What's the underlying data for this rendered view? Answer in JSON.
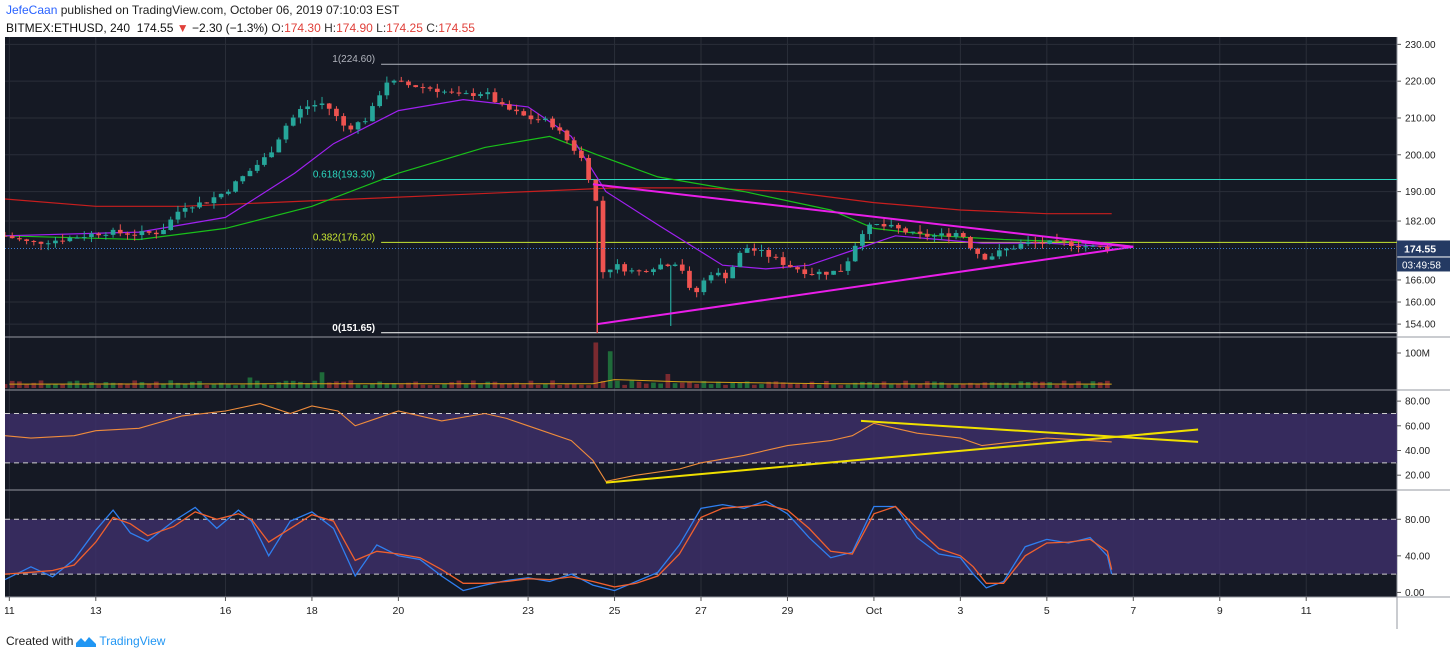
{
  "header": {
    "author": "JefeCaan",
    "published_text": "published on TradingView.com, October 06, 2019 07:10:03 EST",
    "symbol": "BITMEX:ETHUSD, 240",
    "last": "174.55",
    "change_arrow": "▼",
    "change": "−2.30 (−1.3%)",
    "o_label": "O:",
    "o": "174.30",
    "h_label": "H:",
    "h": "174.90",
    "l_label": "L:",
    "l": "174.25",
    "c_label": "C:",
    "c": "174.55"
  },
  "footer": {
    "created_with": "Created with",
    "brand": "TradingView"
  },
  "colors": {
    "background": "#151924",
    "grid": "#2a2e39",
    "up": "#26a69a",
    "down": "#ef5350",
    "wedge": "#e91ee9",
    "fib": "#c8e632",
    "ma_green": "#19c019",
    "ma_purple": "#a020f0",
    "ma_red": "#c81e1e",
    "rsi_line": "#ef8c3c",
    "rsi_trend": "#f0e000",
    "stoch_k": "#2f7ff0",
    "stoch_d": "#f0602e",
    "band": "#3e2f6b"
  },
  "chart_data": {
    "type": "candlestick",
    "timeframe": "240",
    "date_ticks": [
      "11",
      "13",
      "16",
      "18",
      "20",
      "23",
      "25",
      "27",
      "29",
      "Oct",
      "3",
      "5",
      "7",
      "9",
      "11"
    ],
    "date_tick_positions": [
      11,
      13,
      16,
      18,
      20,
      23,
      25,
      27,
      29,
      31,
      33,
      35,
      37,
      39,
      41
    ],
    "x_range": [
      10.9,
      43.1
    ],
    "price_axis": {
      "ticks": [
        230,
        220,
        210,
        200,
        190,
        182,
        166,
        160,
        154
      ],
      "ylim": [
        150.5,
        232
      ]
    },
    "last_price_label": "174.55",
    "countdown_label": "03:49:58",
    "fib_levels": [
      {
        "label": "1(224.60)",
        "price": 224.6
      },
      {
        "label": "0.618(193.30)",
        "price": 193.3
      },
      {
        "label": "0.382(176.20)",
        "price": 176.2
      },
      {
        "label": "0(151.65)",
        "price": 151.65
      }
    ],
    "price_anchors": [
      [
        10.9,
        178
      ],
      [
        11.5,
        176
      ],
      [
        12.2,
        177
      ],
      [
        13.2,
        179
      ],
      [
        14,
        178.5
      ],
      [
        14.5,
        179
      ],
      [
        15,
        186
      ],
      [
        15.5,
        187
      ],
      [
        16,
        190
      ],
      [
        16.5,
        195
      ],
      [
        17,
        200
      ],
      [
        17.4,
        208
      ],
      [
        17.8,
        213
      ],
      [
        18.3,
        214
      ],
      [
        18.8,
        207
      ],
      [
        19.3,
        210
      ],
      [
        19.7,
        220
      ],
      [
        20.2,
        219
      ],
      [
        20.8,
        218
      ],
      [
        21.4,
        216
      ],
      [
        22,
        217
      ],
      [
        22.4,
        213
      ],
      [
        23,
        210
      ],
      [
        23.5,
        209
      ],
      [
        23.9,
        204
      ],
      [
        24.3,
        198
      ],
      [
        24.6,
        186
      ],
      [
        24.7,
        168
      ],
      [
        25,
        170
      ],
      [
        25.5,
        168
      ],
      [
        26,
        170
      ],
      [
        26.5,
        171
      ],
      [
        26.8,
        161
      ],
      [
        27.2,
        168
      ],
      [
        27.6,
        167
      ],
      [
        28,
        175
      ],
      [
        28.5,
        173
      ],
      [
        29,
        170
      ],
      [
        29.5,
        168
      ],
      [
        30,
        168
      ],
      [
        30.3,
        169
      ],
      [
        30.7,
        179
      ],
      [
        31,
        181
      ],
      [
        31.5,
        180
      ],
      [
        32,
        178
      ],
      [
        32.5,
        178
      ],
      [
        33,
        179
      ],
      [
        33.3,
        174
      ],
      [
        33.6,
        172
      ],
      [
        34,
        174
      ],
      [
        34.5,
        176
      ],
      [
        35,
        176
      ],
      [
        35.5,
        176
      ],
      [
        36,
        175
      ],
      [
        36.5,
        174.55
      ]
    ],
    "ma_green": [
      [
        10.9,
        178
      ],
      [
        14,
        177
      ],
      [
        16,
        180
      ],
      [
        18,
        186
      ],
      [
        20,
        195
      ],
      [
        22,
        202
      ],
      [
        23.5,
        205
      ],
      [
        24.6,
        200
      ],
      [
        26,
        194
      ],
      [
        28,
        190
      ],
      [
        30,
        185
      ],
      [
        31,
        180
      ],
      [
        32.5,
        178
      ],
      [
        34,
        177
      ],
      [
        36.5,
        176
      ]
    ],
    "ma_purple": [
      [
        10.9,
        178
      ],
      [
        14,
        179
      ],
      [
        16,
        183
      ],
      [
        17.6,
        195
      ],
      [
        18.5,
        203
      ],
      [
        20,
        212
      ],
      [
        21.5,
        215
      ],
      [
        23,
        213
      ],
      [
        24,
        205
      ],
      [
        24.8,
        190
      ],
      [
        26,
        181
      ],
      [
        27.5,
        170
      ],
      [
        28.5,
        169
      ],
      [
        29.5,
        170
      ],
      [
        30.5,
        174
      ],
      [
        31.5,
        178
      ],
      [
        32.5,
        177
      ],
      [
        33.5,
        176
      ],
      [
        35,
        176
      ],
      [
        36.5,
        175
      ]
    ],
    "ma_red": [
      [
        10.9,
        188
      ],
      [
        13,
        186
      ],
      [
        15,
        186
      ],
      [
        17,
        187
      ],
      [
        19,
        188
      ],
      [
        21,
        189
      ],
      [
        23,
        190
      ],
      [
        25,
        191
      ],
      [
        27,
        191
      ],
      [
        29,
        190
      ],
      [
        31,
        187
      ],
      [
        33,
        185
      ],
      [
        35,
        184
      ],
      [
        36.5,
        184
      ]
    ],
    "wedge_upper": [
      [
        24.5,
        192
      ],
      [
        37,
        175
      ]
    ],
    "wedge_lower": [
      [
        24.6,
        154
      ],
      [
        37,
        175
      ]
    ],
    "volume_axis": {
      "label": "100M",
      "level": 100000000,
      "max": 140000000
    },
    "volume_spikes": [
      [
        24.6,
        130000000
      ],
      [
        24.9,
        105000000
      ],
      [
        26.3,
        40000000
      ],
      [
        18.2,
        45000000
      ],
      [
        16.6,
        30000000
      ]
    ],
    "rsi": {
      "ticks": [
        80,
        60,
        40,
        20
      ],
      "ylim": [
        8,
        89
      ],
      "band": [
        30,
        70
      ],
      "series": [
        [
          10.9,
          52
        ],
        [
          11.5,
          50
        ],
        [
          12.5,
          52
        ],
        [
          13,
          56
        ],
        [
          14,
          58
        ],
        [
          15,
          68
        ],
        [
          16,
          72
        ],
        [
          16.8,
          78
        ],
        [
          17.5,
          70
        ],
        [
          18,
          76
        ],
        [
          18.6,
          72
        ],
        [
          19,
          60
        ],
        [
          20,
          72
        ],
        [
          21,
          64
        ],
        [
          22,
          70
        ],
        [
          22.5,
          66
        ],
        [
          23,
          60
        ],
        [
          24,
          48
        ],
        [
          24.5,
          32
        ],
        [
          24.8,
          15
        ],
        [
          25.5,
          20
        ],
        [
          26.5,
          25
        ],
        [
          27,
          30
        ],
        [
          28,
          36
        ],
        [
          29,
          44
        ],
        [
          30,
          48
        ],
        [
          30.5,
          52
        ],
        [
          31,
          62
        ],
        [
          31.5,
          58
        ],
        [
          32,
          54
        ],
        [
          33,
          50
        ],
        [
          33.5,
          44
        ],
        [
          34,
          46
        ],
        [
          35,
          50
        ],
        [
          36,
          48
        ],
        [
          36.5,
          47
        ]
      ],
      "trend_upper": [
        [
          30.7,
          64
        ],
        [
          38.5,
          47
        ]
      ],
      "trend_lower": [
        [
          24.8,
          14
        ],
        [
          38.5,
          57
        ]
      ]
    },
    "stoch": {
      "ticks": [
        80,
        40,
        0
      ],
      "ylim": [
        -5,
        112
      ],
      "band": [
        20,
        80
      ],
      "k": [
        [
          10.9,
          14
        ],
        [
          11.5,
          28
        ],
        [
          12,
          17
        ],
        [
          12.5,
          36
        ],
        [
          13,
          68
        ],
        [
          13.4,
          90
        ],
        [
          13.8,
          65
        ],
        [
          14.2,
          56
        ],
        [
          14.8,
          78
        ],
        [
          15.3,
          93
        ],
        [
          15.8,
          70
        ],
        [
          16.3,
          90
        ],
        [
          16.6,
          78
        ],
        [
          17,
          40
        ],
        [
          17.5,
          78
        ],
        [
          18,
          88
        ],
        [
          18.5,
          70
        ],
        [
          19,
          18
        ],
        [
          19.5,
          52
        ],
        [
          20,
          40
        ],
        [
          20.5,
          36
        ],
        [
          21,
          18
        ],
        [
          21.5,
          2
        ],
        [
          22,
          8
        ],
        [
          22.5,
          13
        ],
        [
          23,
          16
        ],
        [
          23.5,
          12
        ],
        [
          24,
          20
        ],
        [
          24.5,
          8
        ],
        [
          25,
          2
        ],
        [
          25.5,
          12
        ],
        [
          26,
          22
        ],
        [
          26.5,
          52
        ],
        [
          27,
          92
        ],
        [
          27.5,
          96
        ],
        [
          28,
          92
        ],
        [
          28.5,
          100
        ],
        [
          29,
          86
        ],
        [
          29.5,
          60
        ],
        [
          30,
          38
        ],
        [
          30.5,
          44
        ],
        [
          31,
          94
        ],
        [
          31.5,
          94
        ],
        [
          32,
          60
        ],
        [
          32.5,
          42
        ],
        [
          33,
          38
        ],
        [
          33.3,
          20
        ],
        [
          33.6,
          5
        ],
        [
          34,
          12
        ],
        [
          34.5,
          50
        ],
        [
          35,
          58
        ],
        [
          35.5,
          54
        ],
        [
          36,
          60
        ],
        [
          36.4,
          40
        ],
        [
          36.5,
          20
        ]
      ],
      "d": [
        [
          10.9,
          20
        ],
        [
          11.5,
          22
        ],
        [
          12,
          24
        ],
        [
          12.5,
          30
        ],
        [
          13,
          55
        ],
        [
          13.4,
          82
        ],
        [
          13.8,
          75
        ],
        [
          14.2,
          62
        ],
        [
          14.8,
          72
        ],
        [
          15.3,
          88
        ],
        [
          15.8,
          80
        ],
        [
          16.3,
          86
        ],
        [
          16.6,
          80
        ],
        [
          17,
          55
        ],
        [
          17.5,
          70
        ],
        [
          18,
          85
        ],
        [
          18.5,
          78
        ],
        [
          19,
          35
        ],
        [
          19.5,
          45
        ],
        [
          20,
          42
        ],
        [
          20.5,
          38
        ],
        [
          21,
          25
        ],
        [
          21.5,
          10
        ],
        [
          22,
          10
        ],
        [
          22.5,
          12
        ],
        [
          23,
          15
        ],
        [
          23.5,
          14
        ],
        [
          24,
          17
        ],
        [
          24.5,
          12
        ],
        [
          25,
          6
        ],
        [
          25.5,
          10
        ],
        [
          26,
          18
        ],
        [
          26.5,
          42
        ],
        [
          27,
          82
        ],
        [
          27.5,
          92
        ],
        [
          28,
          94
        ],
        [
          28.5,
          96
        ],
        [
          29,
          90
        ],
        [
          29.5,
          70
        ],
        [
          30,
          45
        ],
        [
          30.5,
          42
        ],
        [
          31,
          86
        ],
        [
          31.5,
          94
        ],
        [
          32,
          70
        ],
        [
          32.5,
          48
        ],
        [
          33,
          40
        ],
        [
          33.3,
          28
        ],
        [
          33.6,
          10
        ],
        [
          34,
          10
        ],
        [
          34.5,
          40
        ],
        [
          35,
          54
        ],
        [
          35.5,
          55
        ],
        [
          36,
          58
        ],
        [
          36.4,
          45
        ],
        [
          36.5,
          25
        ]
      ]
    }
  }
}
